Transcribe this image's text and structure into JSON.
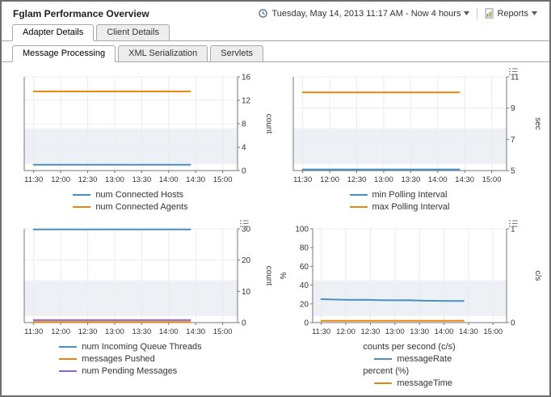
{
  "header": {
    "title": "Fglam Performance Overview",
    "time_range": "Tuesday, May 14, 2013 11:17 AM - Now 4 hours",
    "reports_label": "Reports"
  },
  "tabs_primary": [
    {
      "label": "Adapter Details",
      "active": true
    },
    {
      "label": "Client Details",
      "active": false
    }
  ],
  "tabs_secondary": [
    {
      "label": "Message Processing",
      "active": true
    },
    {
      "label": "XML Serialization",
      "active": false
    },
    {
      "label": "Servlets",
      "active": false
    }
  ],
  "colors": {
    "blue": "#4a90c2",
    "orange": "#e8860e",
    "purple": "#8e68c6"
  },
  "chart_data": [
    {
      "name": "connected-hosts-agents",
      "type": "line",
      "x_tick_labels": [
        "11:30",
        "12:00",
        "12:30",
        "13:00",
        "13:30",
        "14:00",
        "14:30",
        "15:00"
      ],
      "x_domain": [
        -0.35,
        7.55
      ],
      "right_axis": {
        "label": "count",
        "min": 0,
        "max": 16,
        "ticks": [
          0,
          4,
          8,
          12,
          16
        ]
      },
      "menu_icon": false,
      "series": [
        {
          "name": "num Connected Hosts",
          "color": "#4a90c2",
          "axis": "right",
          "points": [
            [
              0,
              1
            ],
            [
              5.8,
              1
            ]
          ]
        },
        {
          "name": "num Connected Agents",
          "color": "#e8860e",
          "axis": "right",
          "points": [
            [
              0,
              13.5
            ],
            [
              5.8,
              13.5
            ]
          ]
        }
      ],
      "legend": [
        {
          "label": "num Connected Hosts",
          "color": "#4a90c2"
        },
        {
          "label": "num Connected Agents",
          "color": "#e8860e"
        }
      ]
    },
    {
      "name": "polling-interval",
      "type": "line",
      "x_tick_labels": [
        "11:30",
        "12:00",
        "12:30",
        "13:00",
        "13:30",
        "14:00",
        "14:30",
        "15:00"
      ],
      "x_domain": [
        -0.35,
        7.55
      ],
      "right_axis": {
        "label": "sec",
        "min": 5,
        "max": 11,
        "ticks": [
          5,
          7,
          9,
          11
        ]
      },
      "menu_icon": true,
      "series": [
        {
          "name": "min Polling Interval",
          "color": "#4a90c2",
          "axis": "right",
          "points": [
            [
              0,
              5.07
            ],
            [
              5.8,
              5.07
            ]
          ]
        },
        {
          "name": "max Polling Interval",
          "color": "#e8860e",
          "axis": "right",
          "points": [
            [
              0,
              10
            ],
            [
              5.8,
              10
            ]
          ]
        }
      ],
      "legend": [
        {
          "label": "min Polling Interval",
          "color": "#4a90c2"
        },
        {
          "label": "max Polling Interval",
          "color": "#e8860e"
        }
      ]
    },
    {
      "name": "queue-messages",
      "type": "line",
      "x_tick_labels": [
        "11:30",
        "12:00",
        "12:30",
        "13:00",
        "13:30",
        "14:00",
        "14:30",
        "15:00"
      ],
      "x_domain": [
        -0.35,
        7.55
      ],
      "right_axis": {
        "label": "count",
        "min": 0,
        "max": 30,
        "ticks": [
          0,
          10,
          20,
          30
        ]
      },
      "menu_icon": true,
      "series": [
        {
          "name": "num Incoming Queue Threads",
          "color": "#4a90c2",
          "axis": "right",
          "points": [
            [
              0,
              29.8
            ],
            [
              5.8,
              29.8
            ]
          ]
        },
        {
          "name": "messages Pushed",
          "color": "#e8860e",
          "axis": "right",
          "points": [
            [
              0,
              0.2
            ],
            [
              5.8,
              0.2
            ]
          ]
        },
        {
          "name": "num Pending Messages",
          "color": "#8e68c6",
          "axis": "right",
          "points": [
            [
              0,
              0.8
            ],
            [
              5.8,
              0.8
            ]
          ]
        }
      ],
      "legend": [
        {
          "label": "num Incoming Queue Threads",
          "color": "#4a90c2"
        },
        {
          "label": "messages Pushed",
          "color": "#e8860e"
        },
        {
          "label": "num Pending Messages",
          "color": "#8e68c6"
        }
      ]
    },
    {
      "name": "message-rate-time",
      "type": "line",
      "x_tick_labels": [
        "11:30",
        "12:00",
        "12:30",
        "13:00",
        "13:30",
        "14:00",
        "14:30",
        "15:00"
      ],
      "x_domain": [
        -0.35,
        7.55
      ],
      "left_axis": {
        "label": "%",
        "min": 0,
        "max": 100,
        "ticks": [
          0,
          20,
          40,
          60,
          80,
          100
        ]
      },
      "right_axis": {
        "label": "c/s",
        "min": 0,
        "max": 1,
        "ticks": [
          0,
          1
        ]
      },
      "menu_icon": true,
      "series": [
        {
          "name": "messageRate",
          "color": "#4a90c2",
          "axis": "left",
          "points": [
            [
              0,
              25
            ],
            [
              0.6,
              24.6
            ],
            [
              1.2,
              24.2
            ],
            [
              1.8,
              24.3
            ],
            [
              2.4,
              24.0
            ],
            [
              3.0,
              23.8
            ],
            [
              3.6,
              23.9
            ],
            [
              4.2,
              23.4
            ],
            [
              4.8,
              23.2
            ],
            [
              5.4,
              23.1
            ],
            [
              5.8,
              23.1
            ]
          ]
        },
        {
          "name": "messageTime",
          "color": "#e8860e",
          "axis": "right",
          "points": [
            [
              0,
              0.02
            ],
            [
              5.8,
              0.02
            ]
          ]
        }
      ],
      "legend": [
        {
          "caption": "counts per second (c/s)"
        },
        {
          "label": "messageRate",
          "color": "#4a90c2"
        },
        {
          "caption": "percent (%)"
        },
        {
          "label": "messageTime",
          "color": "#e8860e"
        }
      ]
    }
  ]
}
